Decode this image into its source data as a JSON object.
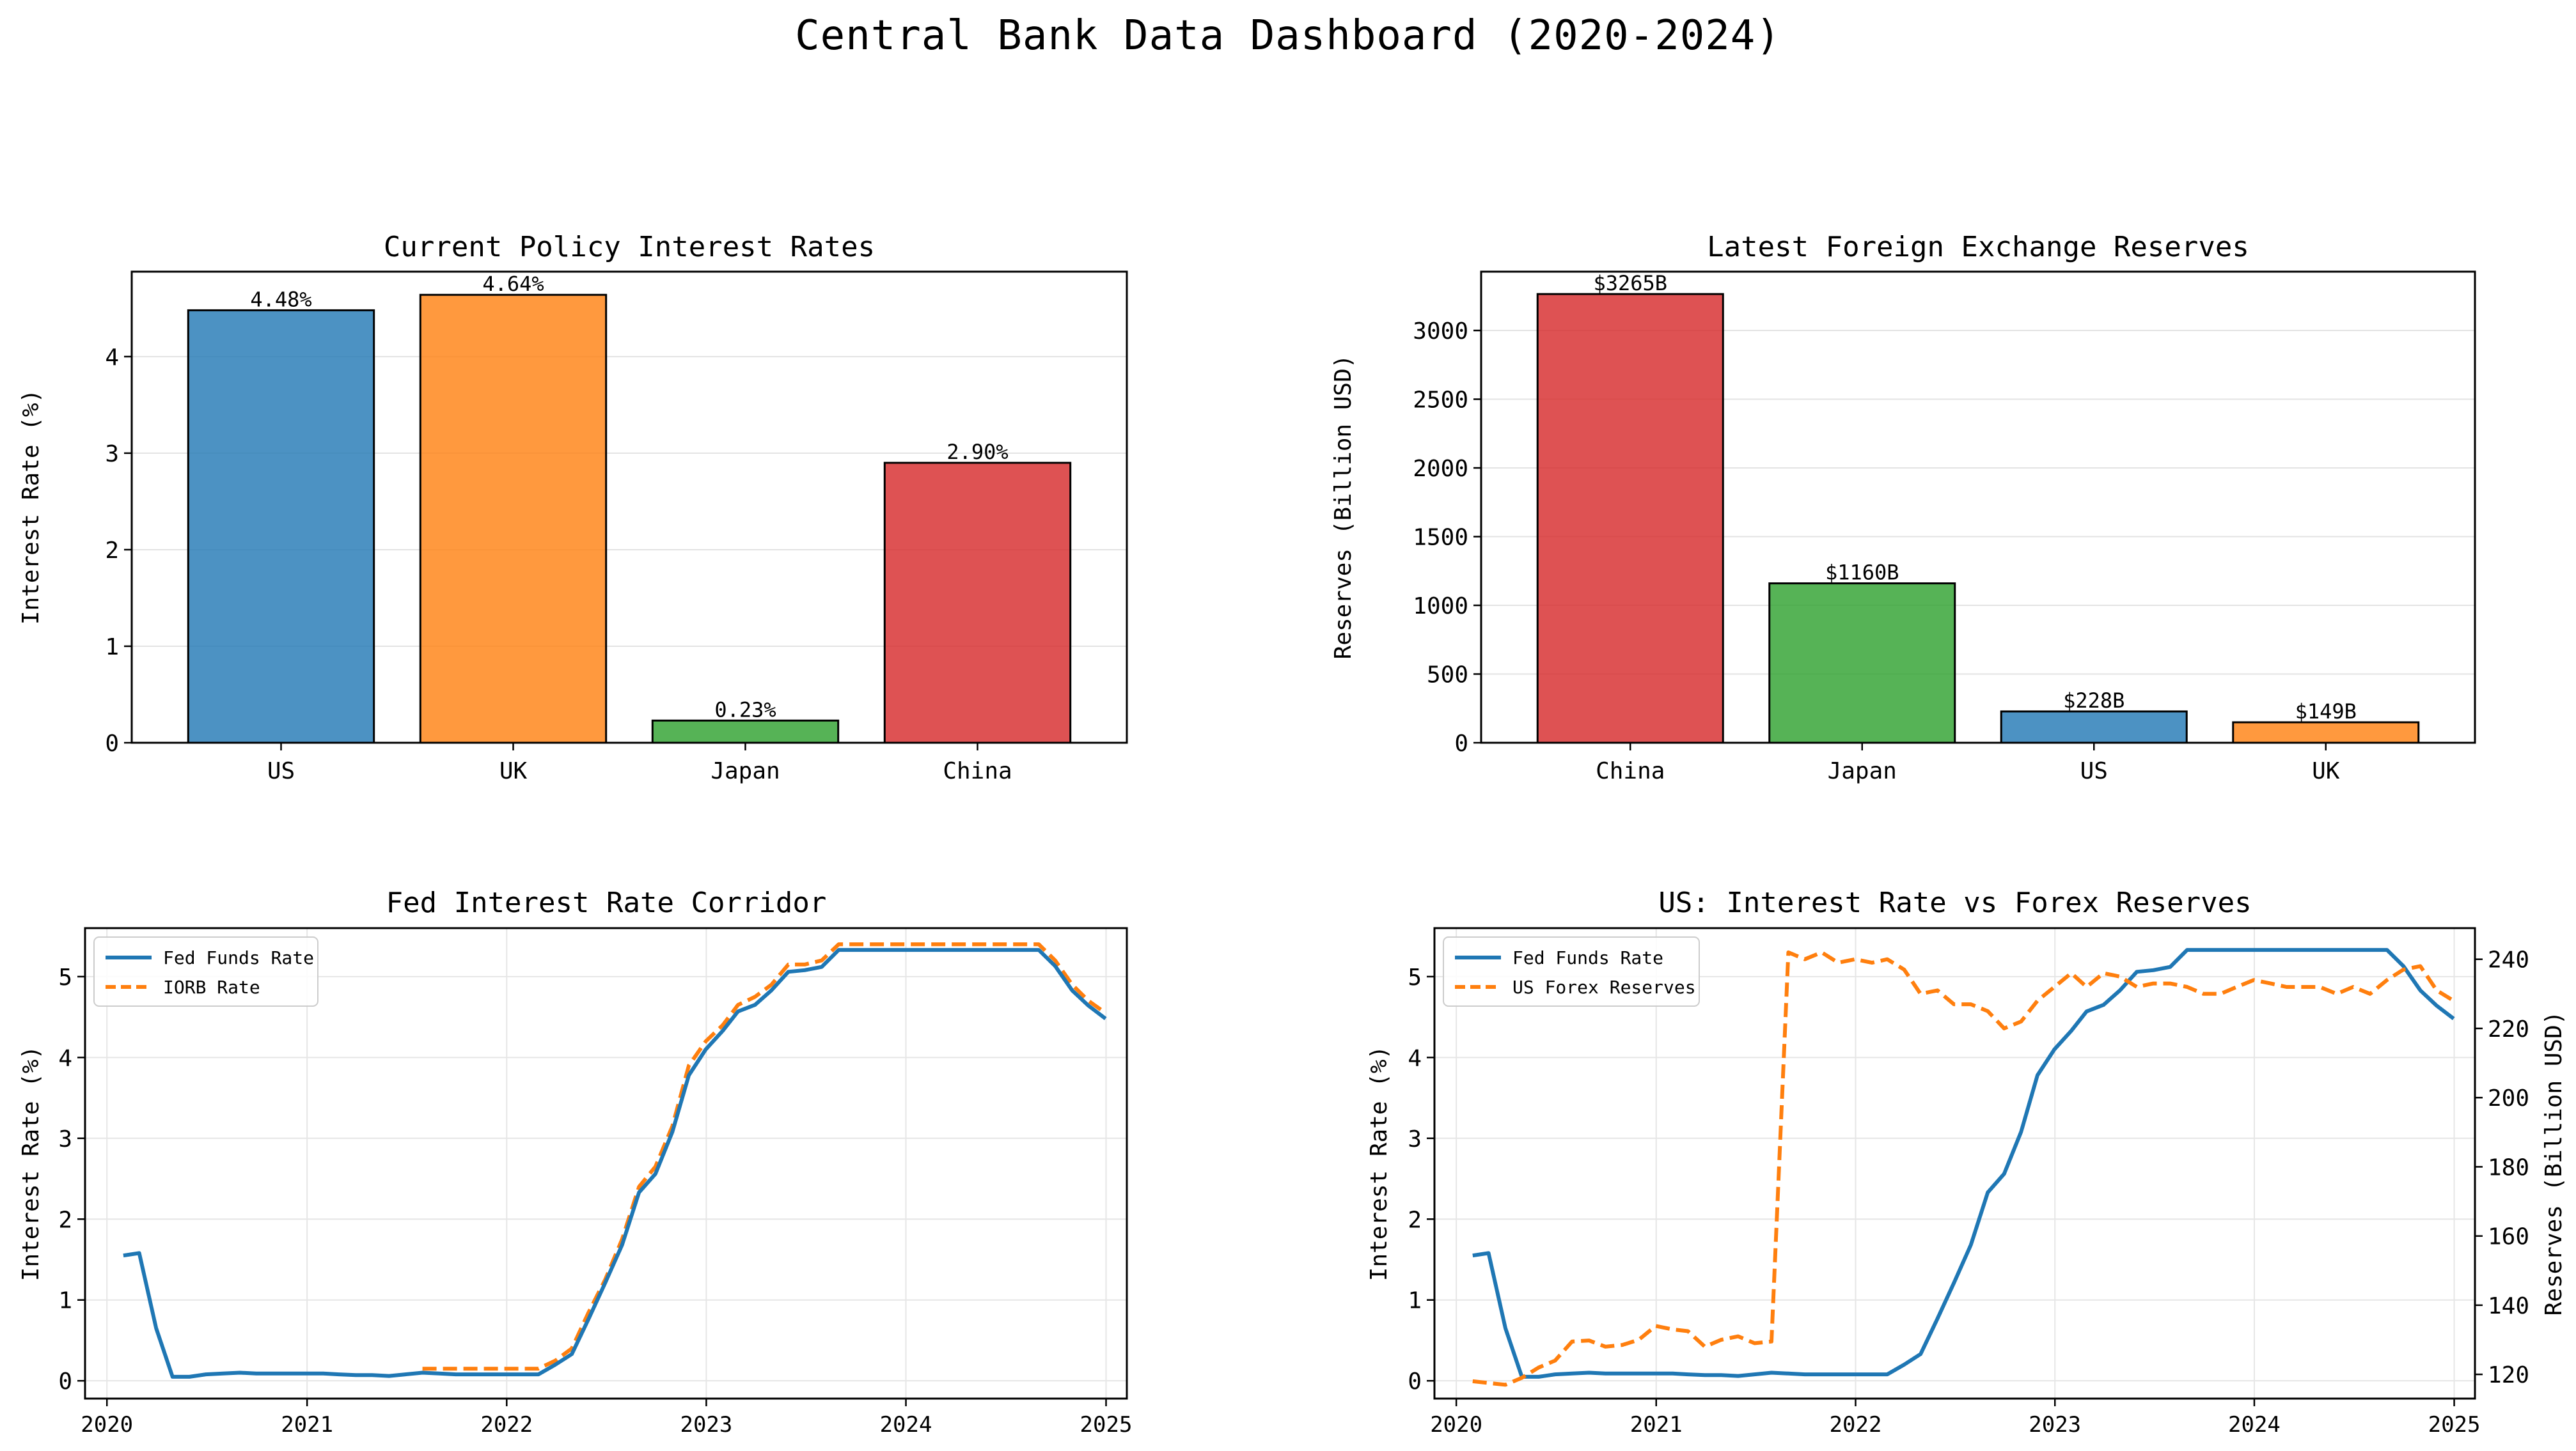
{
  "suptitle": "Central Bank Data Dashboard (2020-2024)",
  "panels": {
    "rates": {
      "title": "Current Policy Interest Rates",
      "ylabel": "Interest Rate (%)"
    },
    "reserves": {
      "title": "Latest Foreign Exchange Reserves",
      "ylabel": "Reserves (Billion USD)"
    },
    "corridor": {
      "title": "Fed Interest Rate Corridor",
      "ylabel": "Interest Rate (%)"
    },
    "usdual": {
      "title": "US: Interest Rate vs Forex Reserves",
      "ylabel": "Interest Rate (%)",
      "ylabel_right": "Reserves (Billion USD)"
    }
  },
  "chart_data": [
    {
      "type": "bar",
      "title": "Current Policy Interest Rates",
      "xlabel": "",
      "ylabel": "Interest Rate (%)",
      "categories": [
        "US",
        "UK",
        "Japan",
        "China"
      ],
      "values": [
        4.48,
        4.64,
        0.23,
        2.9
      ],
      "labels": [
        "4.48%",
        "4.64%",
        "0.23%",
        "2.90%"
      ],
      "colors": [
        "#1f77b4",
        "#ff7f0e",
        "#2ca02c",
        "#d62728"
      ],
      "ylim": [
        0,
        4.88
      ],
      "yticks": [
        0,
        1,
        2,
        3,
        4
      ],
      "grid": "y"
    },
    {
      "type": "bar",
      "title": "Latest Foreign Exchange Reserves",
      "xlabel": "",
      "ylabel": "Reserves (Billion USD)",
      "categories": [
        "China",
        "Japan",
        "US",
        "UK"
      ],
      "values": [
        3265,
        1160,
        228,
        149
      ],
      "labels": [
        "$3265B",
        "$1160B",
        "$228B",
        "$149B"
      ],
      "colors": [
        "#d62728",
        "#2ca02c",
        "#1f77b4",
        "#ff7f0e"
      ],
      "ylim": [
        0,
        3428
      ],
      "yticks": [
        0,
        500,
        1000,
        1500,
        2000,
        2500,
        3000
      ],
      "grid": "y"
    },
    {
      "type": "line",
      "title": "Fed Interest Rate Corridor",
      "xlabel": "",
      "ylabel": "Interest Rate (%)",
      "xlim": [
        "2019-11-22",
        "2025-02-08"
      ],
      "ylim": [
        -0.22,
        5.6
      ],
      "xticks": [
        "2020",
        "2021",
        "2022",
        "2023",
        "2024",
        "2025"
      ],
      "yticks": [
        0,
        1,
        2,
        3,
        4,
        5
      ],
      "grid": "both",
      "legend": "upper left",
      "series": [
        {
          "name": "Fed Funds Rate",
          "color": "#1f77b4",
          "style": "solid",
          "points": [
            [
              "2020-01-31",
              1.55
            ],
            [
              "2020-02-29",
              1.58
            ],
            [
              "2020-03-31",
              0.65
            ],
            [
              "2020-04-30",
              0.05
            ],
            [
              "2020-05-31",
              0.05
            ],
            [
              "2020-06-30",
              0.08
            ],
            [
              "2020-07-31",
              0.09
            ],
            [
              "2020-08-31",
              0.1
            ],
            [
              "2020-09-30",
              0.09
            ],
            [
              "2020-10-31",
              0.09
            ],
            [
              "2020-11-30",
              0.09
            ],
            [
              "2020-12-31",
              0.09
            ],
            [
              "2021-01-31",
              0.09
            ],
            [
              "2021-02-28",
              0.08
            ],
            [
              "2021-03-31",
              0.07
            ],
            [
              "2021-04-30",
              0.07
            ],
            [
              "2021-05-31",
              0.06
            ],
            [
              "2021-06-30",
              0.08
            ],
            [
              "2021-07-31",
              0.1
            ],
            [
              "2021-08-31",
              0.09
            ],
            [
              "2021-09-30",
              0.08
            ],
            [
              "2021-10-31",
              0.08
            ],
            [
              "2021-11-30",
              0.08
            ],
            [
              "2021-12-31",
              0.08
            ],
            [
              "2022-01-31",
              0.08
            ],
            [
              "2022-02-28",
              0.08
            ],
            [
              "2022-03-31",
              0.2
            ],
            [
              "2022-04-30",
              0.33
            ],
            [
              "2022-05-31",
              0.77
            ],
            [
              "2022-06-30",
              1.21
            ],
            [
              "2022-07-31",
              1.68
            ],
            [
              "2022-08-31",
              2.33
            ],
            [
              "2022-09-30",
              2.56
            ],
            [
              "2022-10-31",
              3.08
            ],
            [
              "2022-11-30",
              3.78
            ],
            [
              "2022-12-31",
              4.1
            ],
            [
              "2023-01-31",
              4.33
            ],
            [
              "2023-02-28",
              4.57
            ],
            [
              "2023-03-31",
              4.65
            ],
            [
              "2023-04-30",
              4.83
            ],
            [
              "2023-05-31",
              5.06
            ],
            [
              "2023-06-30",
              5.08
            ],
            [
              "2023-07-31",
              5.12
            ],
            [
              "2023-08-31",
              5.33
            ],
            [
              "2023-09-30",
              5.33
            ],
            [
              "2023-10-31",
              5.33
            ],
            [
              "2023-11-30",
              5.33
            ],
            [
              "2023-12-31",
              5.33
            ],
            [
              "2024-01-31",
              5.33
            ],
            [
              "2024-02-29",
              5.33
            ],
            [
              "2024-03-31",
              5.33
            ],
            [
              "2024-04-30",
              5.33
            ],
            [
              "2024-05-31",
              5.33
            ],
            [
              "2024-06-30",
              5.33
            ],
            [
              "2024-07-31",
              5.33
            ],
            [
              "2024-08-31",
              5.33
            ],
            [
              "2024-09-30",
              5.13
            ],
            [
              "2024-10-31",
              4.83
            ],
            [
              "2024-11-30",
              4.64
            ],
            [
              "2024-12-31",
              4.48
            ]
          ]
        },
        {
          "name": "IORB Rate",
          "color": "#ff7f0e",
          "style": "dashed",
          "points": [
            [
              "2021-07-31",
              0.15
            ],
            [
              "2021-08-31",
              0.15
            ],
            [
              "2021-09-30",
              0.15
            ],
            [
              "2021-10-31",
              0.15
            ],
            [
              "2021-11-30",
              0.15
            ],
            [
              "2021-12-31",
              0.15
            ],
            [
              "2022-01-31",
              0.15
            ],
            [
              "2022-02-28",
              0.15
            ],
            [
              "2022-03-31",
              0.25
            ],
            [
              "2022-04-30",
              0.4
            ],
            [
              "2022-05-31",
              0.85
            ],
            [
              "2022-06-30",
              1.25
            ],
            [
              "2022-07-31",
              1.75
            ],
            [
              "2022-08-31",
              2.4
            ],
            [
              "2022-09-30",
              2.65
            ],
            [
              "2022-10-31",
              3.15
            ],
            [
              "2022-11-30",
              3.9
            ],
            [
              "2022-12-31",
              4.2
            ],
            [
              "2023-01-31",
              4.4
            ],
            [
              "2023-02-28",
              4.65
            ],
            [
              "2023-03-31",
              4.75
            ],
            [
              "2023-04-30",
              4.9
            ],
            [
              "2023-05-31",
              5.15
            ],
            [
              "2023-06-30",
              5.15
            ],
            [
              "2023-07-31",
              5.2
            ],
            [
              "2023-08-31",
              5.4
            ],
            [
              "2023-09-30",
              5.4
            ],
            [
              "2023-10-31",
              5.4
            ],
            [
              "2023-11-30",
              5.4
            ],
            [
              "2023-12-31",
              5.4
            ],
            [
              "2024-01-31",
              5.4
            ],
            [
              "2024-02-29",
              5.4
            ],
            [
              "2024-03-31",
              5.4
            ],
            [
              "2024-04-30",
              5.4
            ],
            [
              "2024-05-31",
              5.4
            ],
            [
              "2024-06-30",
              5.4
            ],
            [
              "2024-07-31",
              5.4
            ],
            [
              "2024-08-31",
              5.4
            ],
            [
              "2024-09-30",
              5.2
            ],
            [
              "2024-10-31",
              4.9
            ],
            [
              "2024-11-30",
              4.7
            ],
            [
              "2024-12-31",
              4.55
            ]
          ]
        }
      ]
    },
    {
      "type": "line",
      "title": "US: Interest Rate vs Forex Reserves",
      "xlabel": "",
      "ylabel": "Interest Rate (%)",
      "ylabel_right": "Reserves (Billion USD)",
      "xlim": [
        "2019-11-22",
        "2025-02-08"
      ],
      "ylim": [
        -0.22,
        5.6
      ],
      "ylim_right": [
        113,
        249
      ],
      "xticks": [
        "2020",
        "2021",
        "2022",
        "2023",
        "2024",
        "2025"
      ],
      "yticks": [
        0,
        1,
        2,
        3,
        4,
        5
      ],
      "yticks_right": [
        120,
        140,
        160,
        180,
        200,
        220,
        240
      ],
      "grid": "both",
      "legend": "upper left",
      "series": [
        {
          "name": "Fed Funds Rate",
          "axis": "left",
          "color": "#1f77b4",
          "style": "solid",
          "points_ref": "same as Fed Funds Rate in Fed Interest Rate Corridor"
        },
        {
          "name": "US Forex Reserves",
          "axis": "right",
          "color": "#ff7f0e",
          "style": "dashed",
          "points": [
            [
              "2020-01-31",
              118
            ],
            [
              "2020-02-29",
              117.5
            ],
            [
              "2020-03-31",
              117
            ],
            [
              "2020-04-30",
              119
            ],
            [
              "2020-05-31",
              122
            ],
            [
              "2020-06-30",
              124
            ],
            [
              "2020-07-31",
              129.5
            ],
            [
              "2020-08-31",
              129.8
            ],
            [
              "2020-09-30",
              128
            ],
            [
              "2020-10-31",
              128.5
            ],
            [
              "2020-11-30",
              130
            ],
            [
              "2020-12-31",
              134
            ],
            [
              "2021-01-31",
              133
            ],
            [
              "2021-02-28",
              132.5
            ],
            [
              "2021-03-31",
              128
            ],
            [
              "2021-04-30",
              130
            ],
            [
              "2021-05-31",
              131
            ],
            [
              "2021-06-30",
              129
            ],
            [
              "2021-07-31",
              129.5
            ],
            [
              "2021-08-31",
              242
            ],
            [
              "2021-09-30",
              240
            ],
            [
              "2021-10-31",
              242
            ],
            [
              "2021-11-30",
              239
            ],
            [
              "2021-12-31",
              240
            ],
            [
              "2022-01-31",
              239
            ],
            [
              "2022-02-28",
              240
            ],
            [
              "2022-03-31",
              237
            ],
            [
              "2022-04-30",
              230
            ],
            [
              "2022-05-31",
              231
            ],
            [
              "2022-06-30",
              227
            ],
            [
              "2022-07-31",
              227
            ],
            [
              "2022-08-31",
              225
            ],
            [
              "2022-09-30",
              220
            ],
            [
              "2022-10-31",
              222
            ],
            [
              "2022-11-30",
              228
            ],
            [
              "2022-12-31",
              232
            ],
            [
              "2023-01-31",
              236
            ],
            [
              "2023-02-28",
              232
            ],
            [
              "2023-03-31",
              236
            ],
            [
              "2023-04-30",
              235
            ],
            [
              "2023-05-31",
              232
            ],
            [
              "2023-06-30",
              233
            ],
            [
              "2023-07-31",
              233
            ],
            [
              "2023-08-31",
              232
            ],
            [
              "2023-09-30",
              230
            ],
            [
              "2023-10-31",
              230
            ],
            [
              "2023-11-30",
              232
            ],
            [
              "2023-12-31",
              234
            ],
            [
              "2024-01-31",
              233
            ],
            [
              "2024-02-29",
              232
            ],
            [
              "2024-03-31",
              232
            ],
            [
              "2024-04-30",
              232
            ],
            [
              "2024-05-31",
              230
            ],
            [
              "2024-06-30",
              232
            ],
            [
              "2024-07-31",
              230
            ],
            [
              "2024-08-31",
              234
            ],
            [
              "2024-09-30",
              237
            ],
            [
              "2024-10-31",
              238
            ],
            [
              "2024-11-30",
              231
            ],
            [
              "2024-12-31",
              228
            ]
          ]
        }
      ]
    }
  ]
}
